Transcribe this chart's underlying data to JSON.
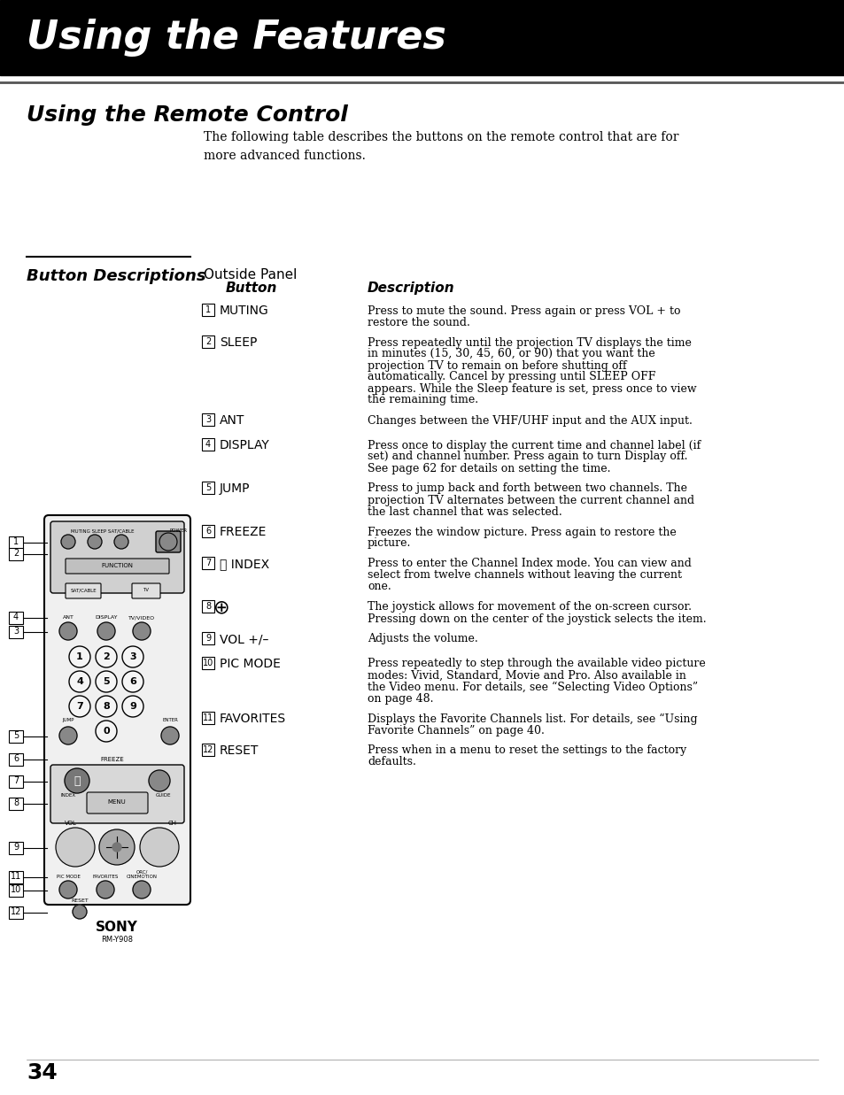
{
  "page_bg": "#ffffff",
  "header_bg": "#000000",
  "header_text": "Using the Features",
  "header_text_color": "#ffffff",
  "section_title": "Using the Remote Control",
  "intro_text": "The following table describes the buttons on the remote control that are for\nmore advanced functions.",
  "button_desc_title": "Button Descriptions",
  "col_header1": "Outside Panel",
  "col_header2": "Button",
  "col_header3": "Description",
  "page_number": "34",
  "buttons": [
    {
      "num": "1",
      "name": "MUTING",
      "desc": "Press to mute the sound. Press again or press VOL + to\nrestore the sound."
    },
    {
      "num": "2",
      "name": "SLEEP",
      "desc": "Press repeatedly until the projection TV displays the time\nin minutes (15, 30, 45, 60, or 90) that you want the\nprojection TV to remain on before shutting off\nautomatically. Cancel by pressing until SLEEP OFF\nappears. While the Sleep feature is set, press once to view\nthe remaining time."
    },
    {
      "num": "3",
      "name": "ANT",
      "desc": "Changes between the VHF/UHF input and the AUX input."
    },
    {
      "num": "4",
      "name": "DISPLAY",
      "desc": "Press once to display the current time and channel label (if\nset) and channel number. Press again to turn Display off.\nSee page 62 for details on setting the time."
    },
    {
      "num": "5",
      "name": "JUMP",
      "desc": "Press to jump back and forth between two channels. The\nprojection TV alternates between the current channel and\nthe last channel that was selected."
    },
    {
      "num": "6",
      "name": "FREEZE",
      "desc": "Freezes the window picture. Press again to restore the\npicture."
    },
    {
      "num": "7",
      "name": "⌸ INDEX",
      "desc": "Press to enter the Channel Index mode. You can view and\nselect from twelve channels without leaving the current\none."
    },
    {
      "num": "8",
      "name": "⊕",
      "desc": "The joystick allows for movement of the on-screen cursor.\nPressing down on the center of the joystick selects the item."
    },
    {
      "num": "9",
      "name": "VOL +/–",
      "desc": "Adjusts the volume."
    },
    {
      "num": "10",
      "name": "PIC MODE",
      "desc": "Press repeatedly to step through the available video picture\nmodes: Vivid, Standard, Movie and Pro. Also available in\nthe Video menu. For details, see “Selecting Video Options”\non page 48."
    },
    {
      "num": "11",
      "name": "FAVORITES",
      "desc": "Displays the Favorite Channels list. For details, see “Using\nFavorite Channels” on page 40."
    },
    {
      "num": "12",
      "name": "RESET",
      "desc": "Press when in a menu to reset the settings to the factory\ndefaults."
    }
  ]
}
